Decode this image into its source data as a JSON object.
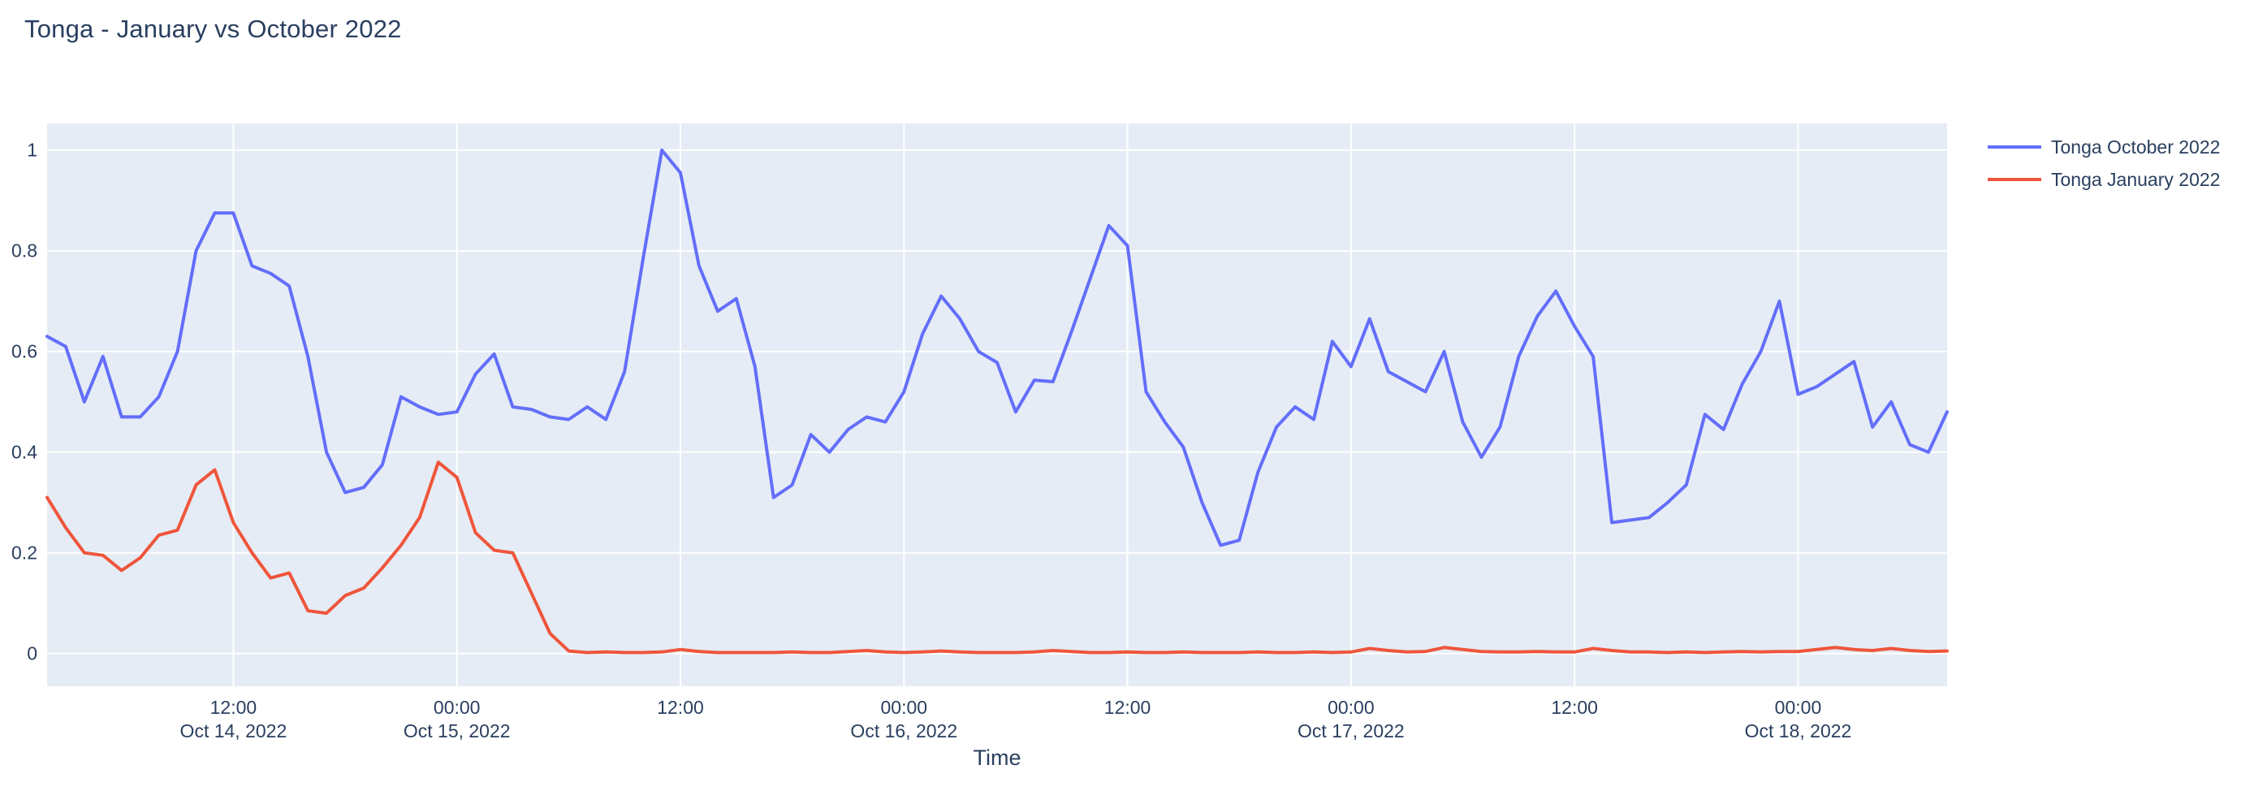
{
  "title": "Tonga - January vs October 2022",
  "colors": {
    "october_line": "#636EFA",
    "january_line": "#EF553B",
    "plot_background": "#E5ECF6",
    "gridline": "#FFFFFF",
    "text": "#2a3f5f"
  },
  "legend": {
    "items": [
      {
        "label": "Tonga October 2022",
        "color": "#636EFA"
      },
      {
        "label": "Tonga January 2022",
        "color": "#EF553B"
      }
    ]
  },
  "chart_data": {
    "type": "line",
    "title": "Tonga - January vs October 2022",
    "xlabel": "Time",
    "ylabel": "",
    "grid": true,
    "legend_position": "top-right",
    "plot_bg": "#E5ECF6",
    "ylim": [
      -0.065,
      1.053
    ],
    "x_start": "2022-10-14 02:00",
    "x_step_hours": 1,
    "n_points": 103,
    "yticks": [
      {
        "value": 0,
        "label": "0"
      },
      {
        "value": 0.2,
        "label": "0.2"
      },
      {
        "value": 0.4,
        "label": "0.4"
      },
      {
        "value": 0.6,
        "label": "0.6"
      },
      {
        "value": 0.8,
        "label": "0.8"
      },
      {
        "value": 1,
        "label": "1"
      }
    ],
    "xticks": [
      {
        "index": 10,
        "time": "12:00",
        "date": "Oct 14, 2022"
      },
      {
        "index": 22,
        "time": "00:00",
        "date": "Oct 15, 2022"
      },
      {
        "index": 34,
        "time": "12:00",
        "date": ""
      },
      {
        "index": 46,
        "time": "00:00",
        "date": "Oct 16, 2022"
      },
      {
        "index": 58,
        "time": "12:00",
        "date": ""
      },
      {
        "index": 70,
        "time": "00:00",
        "date": "Oct 17, 2022"
      },
      {
        "index": 82,
        "time": "12:00",
        "date": ""
      },
      {
        "index": 94,
        "time": "00:00",
        "date": "Oct 18, 2022"
      }
    ],
    "series": [
      {
        "name": "Tonga October 2022",
        "color": "#636EFA",
        "values": [
          0.63,
          0.61,
          0.5,
          0.59,
          0.47,
          0.47,
          0.51,
          0.6,
          0.8,
          0.875,
          0.875,
          0.77,
          0.755,
          0.73,
          0.59,
          0.4,
          0.32,
          0.33,
          0.375,
          0.51,
          0.49,
          0.475,
          0.48,
          0.555,
          0.595,
          0.49,
          0.485,
          0.47,
          0.465,
          0.49,
          0.465,
          0.56,
          0.785,
          1.0,
          0.955,
          0.77,
          0.68,
          0.705,
          0.57,
          0.31,
          0.335,
          0.435,
          0.4,
          0.445,
          0.47,
          0.46,
          0.52,
          0.635,
          0.71,
          0.665,
          0.6,
          0.578,
          0.48,
          0.543,
          0.54,
          0.64,
          0.745,
          0.85,
          0.81,
          0.52,
          0.46,
          0.41,
          0.3,
          0.215,
          0.225,
          0.36,
          0.45,
          0.49,
          0.465,
          0.62,
          0.57,
          0.665,
          0.56,
          0.54,
          0.52,
          0.6,
          0.46,
          0.39,
          0.45,
          0.59,
          0.67,
          0.72,
          0.65,
          0.59,
          0.26,
          0.265,
          0.27,
          0.3,
          0.335,
          0.475,
          0.445,
          0.535,
          0.6,
          0.7,
          0.515,
          0.53,
          0.555,
          0.58,
          0.45,
          0.5,
          0.415,
          0.4,
          0.48
        ]
      },
      {
        "name": "Tonga January 2022",
        "color": "#EF553B",
        "values": [
          0.31,
          0.25,
          0.2,
          0.195,
          0.165,
          0.19,
          0.235,
          0.245,
          0.335,
          0.365,
          0.26,
          0.2,
          0.15,
          0.16,
          0.085,
          0.08,
          0.115,
          0.13,
          0.17,
          0.215,
          0.27,
          0.38,
          0.35,
          0.24,
          0.205,
          0.2,
          0.12,
          0.04,
          0.005,
          0.002,
          0.003,
          0.002,
          0.002,
          0.003,
          0.008,
          0.004,
          0.002,
          0.002,
          0.002,
          0.002,
          0.003,
          0.002,
          0.002,
          0.004,
          0.006,
          0.003,
          0.002,
          0.003,
          0.005,
          0.003,
          0.002,
          0.002,
          0.002,
          0.003,
          0.006,
          0.004,
          0.002,
          0.002,
          0.003,
          0.002,
          0.002,
          0.003,
          0.002,
          0.002,
          0.002,
          0.003,
          0.002,
          0.002,
          0.003,
          0.002,
          0.003,
          0.01,
          0.006,
          0.003,
          0.004,
          0.012,
          0.008,
          0.004,
          0.003,
          0.003,
          0.004,
          0.003,
          0.003,
          0.01,
          0.006,
          0.003,
          0.003,
          0.002,
          0.003,
          0.002,
          0.003,
          0.004,
          0.003,
          0.004,
          0.004,
          0.008,
          0.012,
          0.008,
          0.006,
          0.01,
          0.006,
          0.004,
          0.005
        ]
      }
    ]
  }
}
